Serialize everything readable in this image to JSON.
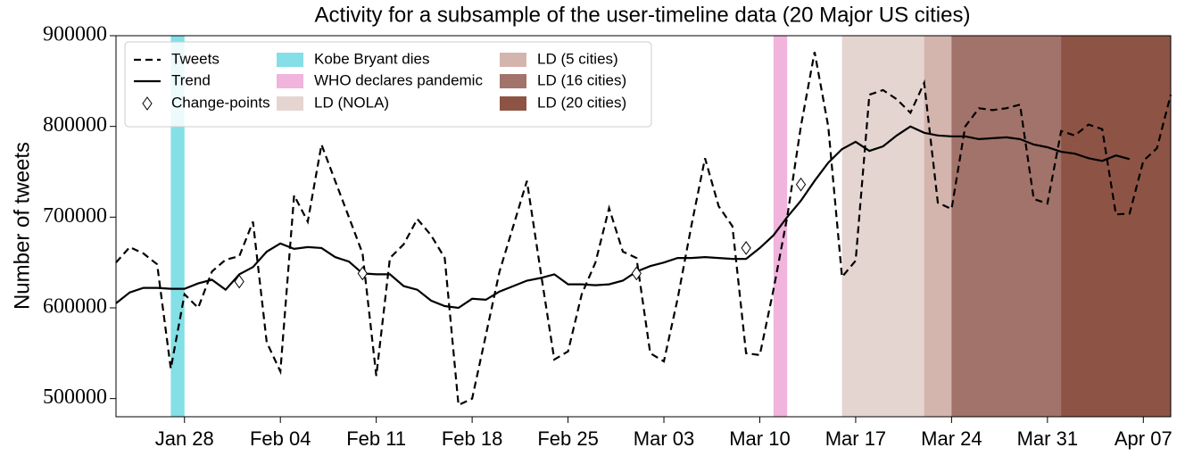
{
  "chart_data": {
    "type": "line",
    "title": "Activity for a subsample of the user-timeline data (20 Major US cities)",
    "ylabel": "Number of tweets",
    "x": [
      "Jan 23",
      "Jan 24",
      "Jan 25",
      "Jan 26",
      "Jan 27",
      "Jan 28",
      "Jan 29",
      "Jan 30",
      "Jan 31",
      "Feb 01",
      "Feb 02",
      "Feb 03",
      "Feb 04",
      "Feb 05",
      "Feb 06",
      "Feb 07",
      "Feb 08",
      "Feb 09",
      "Feb 10",
      "Feb 11",
      "Feb 12",
      "Feb 13",
      "Feb 14",
      "Feb 15",
      "Feb 16",
      "Feb 17",
      "Feb 18",
      "Feb 19",
      "Feb 20",
      "Feb 21",
      "Feb 22",
      "Feb 23",
      "Feb 24",
      "Feb 25",
      "Feb 26",
      "Feb 27",
      "Feb 28",
      "Feb 29",
      "Mar 01",
      "Mar 02",
      "Mar 03",
      "Mar 04",
      "Mar 05",
      "Mar 06",
      "Mar 07",
      "Mar 08",
      "Mar 09",
      "Mar 10",
      "Mar 11",
      "Mar 12",
      "Mar 13",
      "Mar 14",
      "Mar 15",
      "Mar 16",
      "Mar 17",
      "Mar 18",
      "Mar 19",
      "Mar 20",
      "Mar 21",
      "Mar 22",
      "Mar 23",
      "Mar 24",
      "Mar 25",
      "Mar 26",
      "Mar 27",
      "Mar 28",
      "Mar 29",
      "Mar 30",
      "Mar 31",
      "Apr 01",
      "Apr 02",
      "Apr 03",
      "Apr 04",
      "Apr 05",
      "Apr 06",
      "Apr 07",
      "Apr 08",
      "Apr 09"
    ],
    "xlim": [
      "Jan 23",
      "Apr 09"
    ],
    "xticks": [
      "Jan 28",
      "Feb 04",
      "Feb 11",
      "Feb 18",
      "Feb 25",
      "Mar 03",
      "Mar 10",
      "Mar 17",
      "Mar 24",
      "Mar 31",
      "Apr 07"
    ],
    "ylim": [
      480000,
      900000
    ],
    "yticks": [
      500000,
      600000,
      700000,
      800000,
      900000
    ],
    "legend": "upper left",
    "series": [
      {
        "name": "Tweets",
        "color": "#000000",
        "dash": "dashed",
        "values": [
          650000,
          667000,
          660000,
          648000,
          533000,
          615000,
          600000,
          640000,
          653000,
          657000,
          695000,
          562000,
          530000,
          724000,
          695000,
          780000,
          740000,
          700000,
          660000,
          525000,
          655000,
          670000,
          698000,
          680000,
          655000,
          493000,
          500000,
          570000,
          640000,
          690000,
          740000,
          640000,
          543000,
          552000,
          615000,
          650000,
          710000,
          662000,
          655000,
          550000,
          541000,
          610000,
          690000,
          765000,
          712000,
          690000,
          550000,
          548000,
          620000,
          700000,
          800000,
          882000,
          800000,
          634000,
          652000,
          835000,
          840000,
          830000,
          815000,
          848000,
          716000,
          709000,
          800000,
          820000,
          818000,
          820000,
          824000,
          720000,
          715000,
          795000,
          790000,
          802000,
          797000,
          703000,
          704000,
          762000,
          776000,
          835000
        ]
      },
      {
        "name": "Trend",
        "color": "#000000",
        "dash": "solid",
        "values": [
          605000,
          617000,
          622000,
          622000,
          621000,
          621000,
          627000,
          631000,
          620000,
          637000,
          645000,
          662000,
          671000,
          665000,
          667000,
          666000,
          656000,
          651000,
          638000,
          637000,
          637000,
          624000,
          620000,
          608000,
          602000,
          600000,
          610000,
          609000,
          618000,
          624000,
          630000,
          633000,
          637000,
          626000,
          626000,
          625000,
          626000,
          630000,
          640000,
          646000,
          650000,
          655000,
          655000,
          656000,
          655000,
          654000,
          654000,
          666000,
          680000,
          700000,
          718000,
          740000,
          760000,
          775000,
          783000,
          773000,
          778000,
          790000,
          800000,
          793000,
          790000,
          789000,
          789000,
          786000,
          787000,
          788000,
          786000,
          780000,
          777000,
          772000,
          770000,
          765000,
          762000,
          768000,
          764000,
          null,
          null,
          null
        ]
      }
    ],
    "change_points": {
      "name": "Change-points",
      "x": [
        "Feb 01",
        "Feb 10",
        "Mar 01",
        "Mar 09",
        "Mar 13"
      ],
      "values": [
        629000,
        638000,
        638000,
        666000,
        736000
      ]
    },
    "spans": [
      {
        "name": "Kobe Bryant dies",
        "start": "Jan 27",
        "end": "Jan 28",
        "color": "#84dfe6"
      },
      {
        "name": "WHO declares pandemic",
        "start": "Mar 11",
        "end": "Mar 12",
        "color": "#f0b4dd"
      },
      {
        "name": "LD (NOLA)",
        "start": "Mar 16",
        "end": "Apr 09",
        "color": "#e5d5d1"
      },
      {
        "name": "LD (5 cities)",
        "start": "Mar 22",
        "end": "Apr 09",
        "color": "#d3b5ae"
      },
      {
        "name": "LD (16 cities)",
        "start": "Mar 24",
        "end": "Apr 09",
        "color": "#a2736a"
      },
      {
        "name": "LD (20 cities)",
        "start": "Apr 01",
        "end": "Apr 09",
        "color": "#8d5445"
      }
    ]
  }
}
